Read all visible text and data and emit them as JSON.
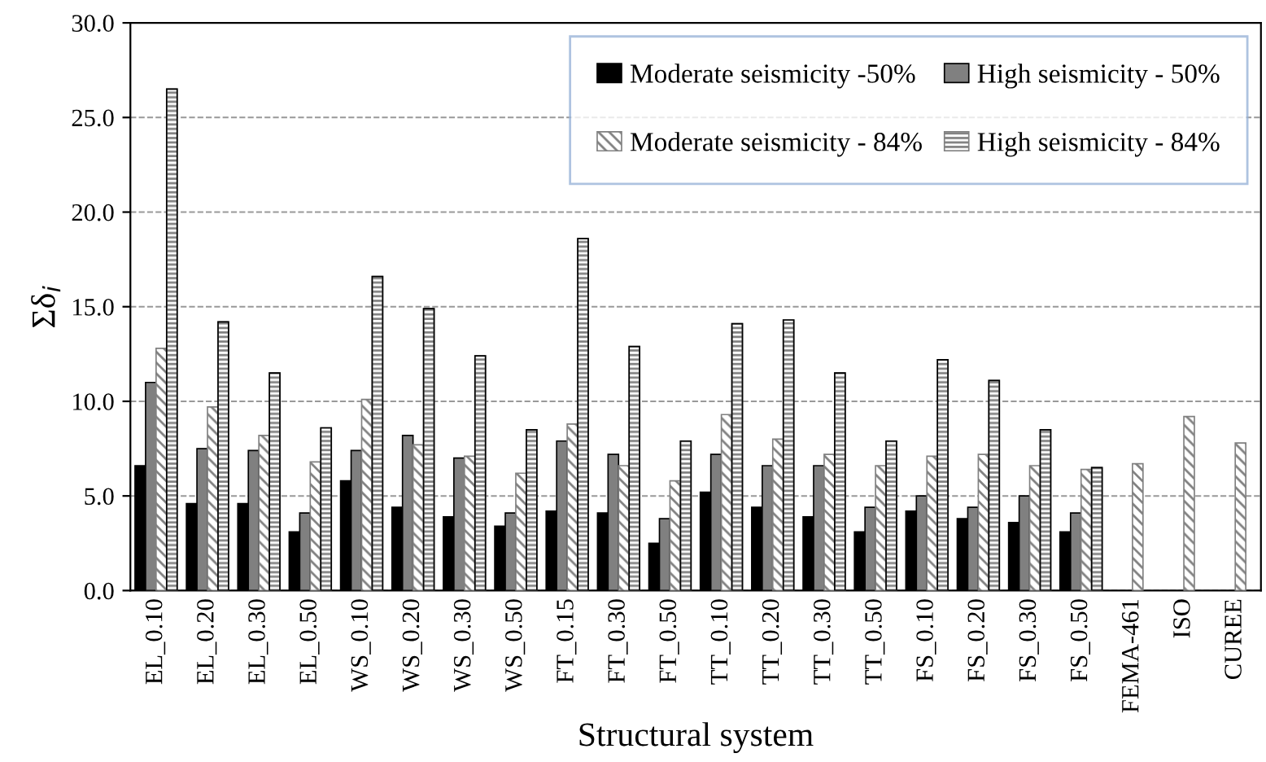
{
  "chart_data": {
    "type": "bar",
    "xlabel": "Structural system",
    "ylabel": "Σδ$_{i}$",
    "categories": [
      "EL_0.10",
      "EL_0.20",
      "EL_0.30",
      "EL_0.50",
      "WS_0.10",
      "WS_0.20",
      "WS_0.30",
      "WS_0.50",
      "FT_0.15",
      "FT_0.30",
      "FT_0.50",
      "TT_0.10",
      "TT_0.20",
      "TT_0.30",
      "TT_0.50",
      "FS_0.10",
      "FS_0.20",
      "FS_0.30",
      "FS_0.50",
      "FEMA-461",
      "ISO",
      "CUREE"
    ],
    "series": [
      {
        "name": "Moderate seismicity -50%",
        "color": "#000000",
        "values": [
          6.6,
          4.6,
          4.6,
          3.1,
          5.8,
          4.4,
          3.9,
          3.4,
          4.2,
          4.1,
          2.5,
          5.2,
          4.4,
          3.9,
          3.1,
          4.2,
          3.8,
          3.6,
          3.1,
          null,
          null,
          null
        ]
      },
      {
        "name": "High seismicity - 50%",
        "color": "#808080",
        "values": [
          11.0,
          7.5,
          7.4,
          4.1,
          7.4,
          8.2,
          7.0,
          4.1,
          7.9,
          7.2,
          3.8,
          7.2,
          6.6,
          6.6,
          4.4,
          5.0,
          4.4,
          5.0,
          4.1,
          null,
          null,
          null
        ]
      },
      {
        "name": "Moderate seismicity - 84%",
        "color": "#808080",
        "values": [
          12.8,
          9.7,
          8.2,
          6.8,
          10.1,
          7.7,
          7.1,
          6.2,
          8.8,
          6.6,
          5.8,
          9.3,
          8.0,
          7.2,
          6.6,
          7.1,
          7.2,
          6.6,
          6.4,
          6.7,
          9.2,
          7.8
        ]
      },
      {
        "name": "High seismicity - 84%",
        "color": "#808080",
        "values": [
          26.5,
          14.2,
          11.5,
          8.6,
          16.6,
          14.9,
          12.4,
          8.5,
          18.6,
          12.9,
          7.9,
          14.1,
          14.3,
          11.5,
          7.9,
          12.2,
          11.1,
          8.5,
          6.5,
          null,
          null,
          null
        ]
      }
    ],
    "ylim": [
      0,
      30
    ],
    "yticks": [
      {
        "value": 0,
        "label": "0.0"
      },
      {
        "value": 5,
        "label": "5.0"
      },
      {
        "value": 10,
        "label": "10.0"
      },
      {
        "value": 15,
        "label": "15.0"
      },
      {
        "value": 20,
        "label": "20.0"
      },
      {
        "value": 25,
        "label": "25.0"
      },
      {
        "value": 30,
        "label": "30.0"
      }
    ],
    "grid": "y",
    "legend": "top right"
  }
}
